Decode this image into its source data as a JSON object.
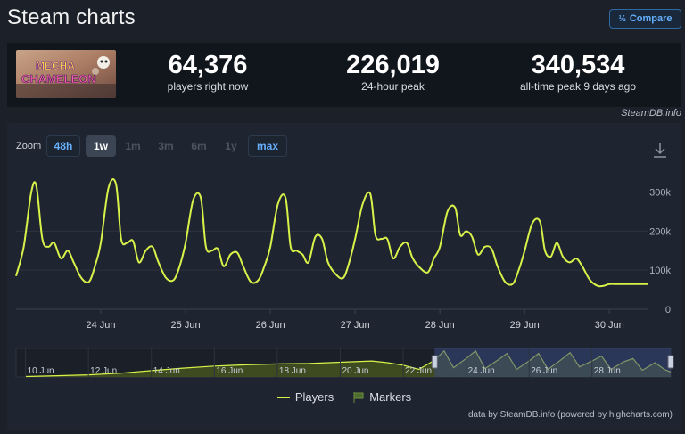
{
  "header": {
    "title": "Steam charts",
    "compare_label": "Compare",
    "compare_icon": "compare-icon"
  },
  "game": {
    "logo_line1": "MECHA",
    "logo_line2": "CHAMELEON"
  },
  "stats": [
    {
      "value": "64,376",
      "label": "players right now"
    },
    {
      "value": "226,019",
      "label": "24-hour peak"
    },
    {
      "value": "340,534",
      "label": "all-time peak 9 days ago"
    }
  ],
  "credit": "SteamDB.info",
  "zoom": {
    "label": "Zoom",
    "options": [
      {
        "label": "48h",
        "state": "link"
      },
      {
        "label": "1w",
        "state": "active"
      },
      {
        "label": "1m",
        "state": "disabled"
      },
      {
        "label": "3m",
        "state": "disabled"
      },
      {
        "label": "6m",
        "state": "disabled"
      },
      {
        "label": "1y",
        "state": "disabled"
      },
      {
        "label": "max",
        "state": "link"
      }
    ]
  },
  "legend": {
    "players": "Players",
    "markers": "Markers"
  },
  "footer": "data by SteamDB.info (powered by highcharts.com)",
  "colors": {
    "series": "#d8f24a",
    "accent": "#66b0ff",
    "navigator_range": "#3a4a82"
  },
  "chart_data": {
    "type": "line",
    "series": [
      {
        "name": "Players",
        "x": [
          23.0,
          23.09,
          23.18,
          23.24,
          23.31,
          23.38,
          23.45,
          23.53,
          23.61,
          23.68,
          23.77,
          23.86,
          23.93,
          24.0,
          24.09,
          24.18,
          24.24,
          24.31,
          24.38,
          24.45,
          24.53,
          24.61,
          24.68,
          24.77,
          24.86,
          24.93,
          25.0,
          25.09,
          25.18,
          25.24,
          25.31,
          25.38,
          25.45,
          25.53,
          25.61,
          25.68,
          25.77,
          25.86,
          25.93,
          26.0,
          26.09,
          26.18,
          26.24,
          26.31,
          26.38,
          26.45,
          26.53,
          26.61,
          26.68,
          26.77,
          26.86,
          26.93,
          27.0,
          27.09,
          27.18,
          27.24,
          27.31,
          27.38,
          27.45,
          27.53,
          27.61,
          27.68,
          27.77,
          27.86,
          27.93,
          28.0,
          28.09,
          28.18,
          28.24,
          28.31,
          28.38,
          28.45,
          28.53,
          28.61,
          28.68,
          28.77,
          28.86,
          28.93,
          29.0,
          29.09,
          29.18,
          29.24,
          29.31,
          29.38,
          29.45,
          29.53,
          29.61,
          29.68,
          29.77,
          29.86,
          29.93,
          30.0,
          30.09,
          30.18,
          30.24,
          30.31,
          30.38,
          30.45
        ],
        "values": [
          85000,
          160000,
          300000,
          315000,
          180000,
          160000,
          170000,
          130000,
          150000,
          120000,
          80000,
          70000,
          110000,
          170000,
          310000,
          320000,
          180000,
          170000,
          175000,
          120000,
          150000,
          160000,
          120000,
          80000,
          75000,
          110000,
          170000,
          280000,
          285000,
          160000,
          150000,
          155000,
          110000,
          140000,
          145000,
          110000,
          70000,
          75000,
          110000,
          160000,
          270000,
          285000,
          160000,
          150000,
          140000,
          120000,
          185000,
          180000,
          120000,
          90000,
          80000,
          120000,
          180000,
          270000,
          295000,
          190000,
          180000,
          180000,
          130000,
          160000,
          170000,
          130000,
          105000,
          95000,
          130000,
          160000,
          250000,
          260000,
          190000,
          200000,
          185000,
          140000,
          160000,
          155000,
          110000,
          70000,
          65000,
          100000,
          150000,
          220000,
          225000,
          150000,
          135000,
          170000,
          135000,
          120000,
          130000,
          110000,
          75000,
          60000,
          60000,
          64376,
          64376,
          64376,
          64376,
          64376,
          64376,
          64376
        ]
      }
    ],
    "x_ticks": [
      "24 Jun",
      "25 Jun",
      "26 Jun",
      "27 Jun",
      "28 Jun",
      "29 Jun",
      "30 Jun"
    ],
    "y_ticks": [
      "0",
      "100k",
      "200k",
      "300k"
    ],
    "ylim": [
      0,
      340000
    ],
    "navigator_ticks": [
      "10 Jun",
      "12 Jun",
      "14 Jun",
      "16 Jun",
      "18 Jun",
      "20 Jun",
      "22 Jun",
      "24 Jun",
      "26 Jun",
      "28 Jun"
    ],
    "navigator": {
      "x": [
        10,
        11,
        12,
        13,
        14,
        15,
        16,
        17,
        18,
        19,
        20,
        21,
        21.5,
        22,
        22.5,
        23,
        23.3,
        23.6,
        24,
        24.3,
        24.6,
        25,
        25.3,
        25.6,
        26,
        26.3,
        26.6,
        27,
        27.3,
        27.6,
        28,
        28.3,
        28.6,
        29,
        29.3,
        29.6,
        30,
        30.3,
        30.5
      ],
      "values": [
        5000,
        15000,
        25000,
        45000,
        75000,
        105000,
        130000,
        145000,
        155000,
        160000,
        175000,
        190000,
        170000,
        140000,
        90000,
        200000,
        310000,
        110000,
        220000,
        310000,
        100000,
        200000,
        280000,
        90000,
        190000,
        280000,
        90000,
        200000,
        290000,
        120000,
        190000,
        250000,
        90000,
        180000,
        220000,
        80000,
        170000,
        90000,
        60000
      ],
      "selected_range": [
        23,
        30.5
      ],
      "xlim": [
        9.7,
        30.5
      ]
    },
    "grid": true,
    "legend": "bottom-center"
  }
}
